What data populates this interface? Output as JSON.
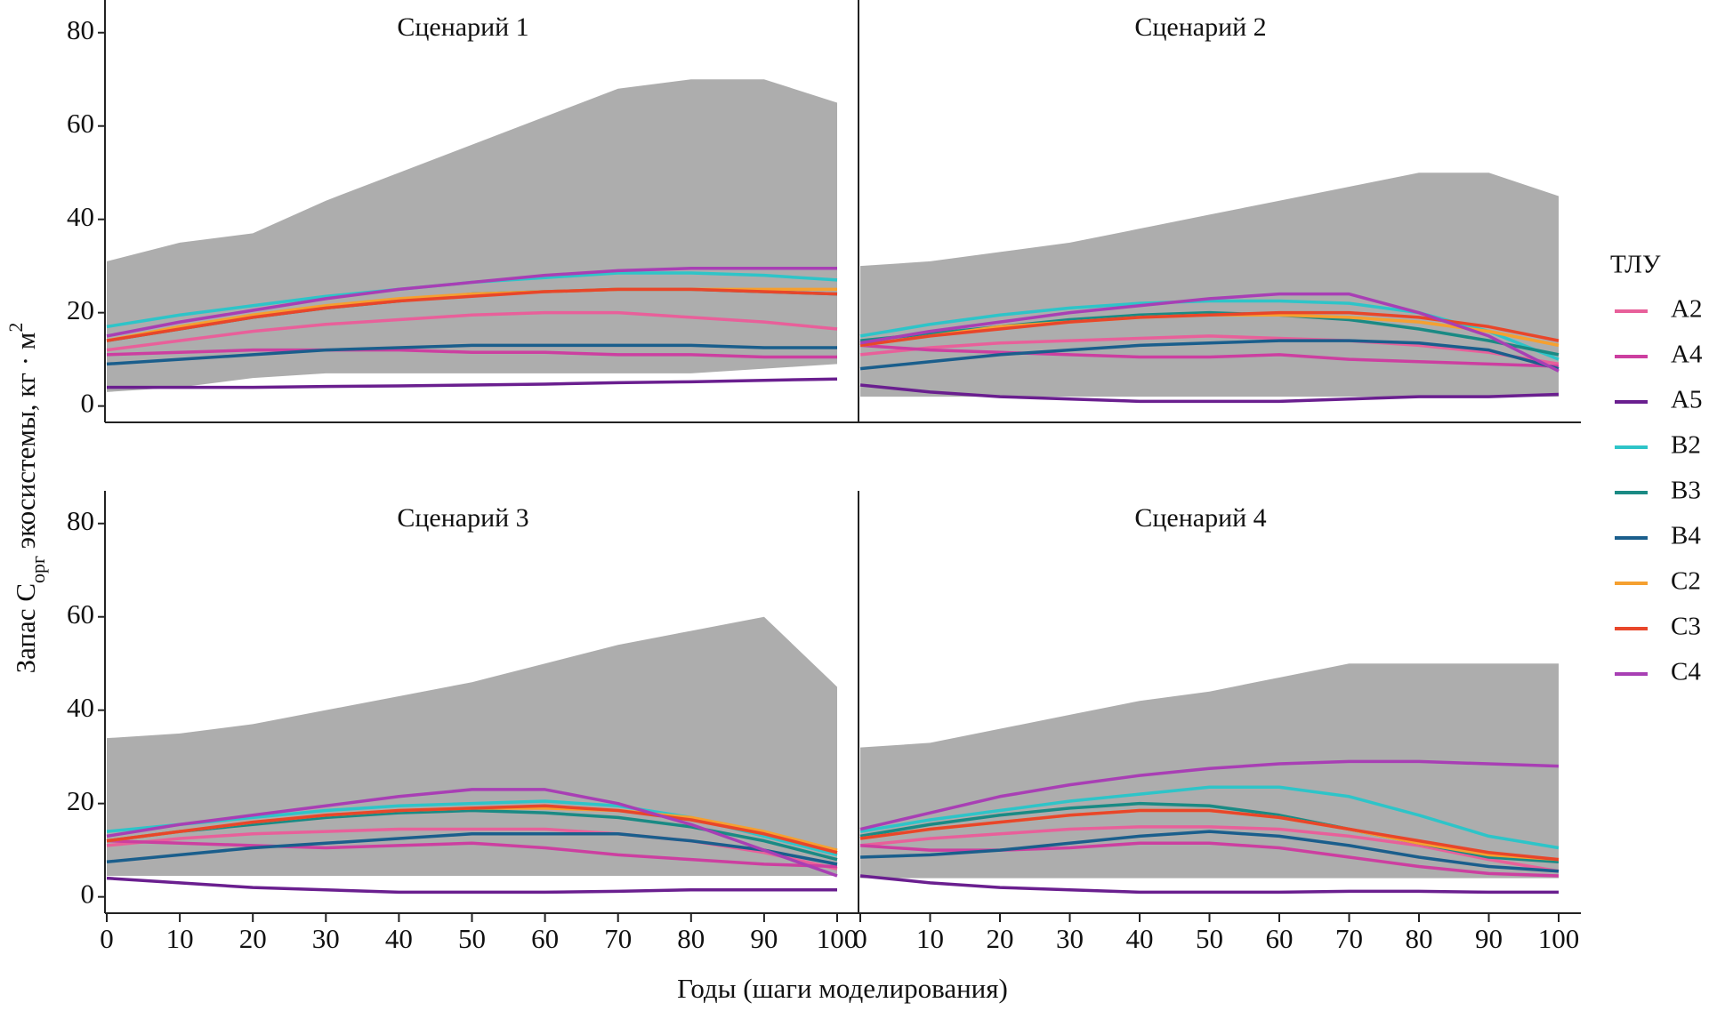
{
  "chart_data": [
    {
      "type": "line",
      "title": "Сценарий 1",
      "x": [
        0,
        10,
        20,
        30,
        40,
        50,
        60,
        70,
        80,
        90,
        100
      ],
      "xlim": [
        0,
        100
      ],
      "ylim": [
        -3.5,
        87
      ],
      "yticks": [
        0,
        20,
        40,
        60,
        80
      ],
      "envelope_color": "#a9a9a9",
      "envelope_upper": [
        31,
        35,
        37,
        44,
        50,
        56,
        62,
        68,
        70,
        70,
        65
      ],
      "envelope_lower": [
        3,
        4,
        6,
        7,
        7,
        7,
        7,
        7,
        7,
        8,
        9
      ],
      "series": [
        {
          "name": "A2",
          "color": "#e8609a",
          "values": [
            12,
            14,
            16,
            17.5,
            18.5,
            19.5,
            20,
            20,
            19,
            18,
            16.5
          ]
        },
        {
          "name": "A4",
          "color": "#cc3fa0",
          "values": [
            11,
            11.5,
            12,
            12,
            12,
            11.5,
            11.5,
            11,
            11,
            10.5,
            10.5
          ]
        },
        {
          "name": "A5",
          "color": "#6a1f8f",
          "values": [
            4,
            4,
            4,
            4.2,
            4.3,
            4.5,
            4.7,
            5,
            5.2,
            5.5,
            5.8
          ]
        },
        {
          "name": "B2",
          "color": "#2ec4c8",
          "values": [
            17,
            19.5,
            21.5,
            23.5,
            25,
            26.5,
            27.5,
            28.5,
            28.5,
            28,
            27
          ]
        },
        {
          "name": "B3",
          "color": "#1a8a84",
          "values": [
            14,
            16.5,
            19,
            21,
            22.5,
            24,
            24.5,
            25,
            25,
            24.5,
            24
          ]
        },
        {
          "name": "B4",
          "color": "#1a5e8c",
          "values": [
            9,
            10,
            11,
            12,
            12.5,
            13,
            13,
            13,
            13,
            12.5,
            12.5
          ]
        },
        {
          "name": "C2",
          "color": "#f5a030",
          "values": [
            14,
            17,
            19.5,
            21.5,
            23,
            24,
            24.5,
            25,
            25,
            25,
            25
          ]
        },
        {
          "name": "C3",
          "color": "#e8462a",
          "values": [
            14,
            16.5,
            19,
            21,
            22.5,
            23.5,
            24.5,
            25,
            25,
            24.5,
            24
          ]
        },
        {
          "name": "C4",
          "color": "#a83fb4",
          "values": [
            15,
            18,
            20.5,
            23,
            25,
            26.5,
            28,
            29,
            29.5,
            29.5,
            29.5
          ]
        }
      ]
    },
    {
      "type": "line",
      "title": "Сценарий 2",
      "x": [
        0,
        10,
        20,
        30,
        40,
        50,
        60,
        70,
        80,
        90,
        100
      ],
      "xlim": [
        0,
        100
      ],
      "ylim": [
        -3.5,
        87
      ],
      "envelope_color": "#a9a9a9",
      "envelope_upper": [
        30,
        31,
        33,
        35,
        38,
        41,
        44,
        47,
        50,
        50,
        45
      ],
      "envelope_lower": [
        2,
        2,
        2,
        2,
        2,
        2,
        2,
        2,
        2,
        2,
        2
      ],
      "series": [
        {
          "name": "A2",
          "color": "#e8609a",
          "values": [
            11,
            12.5,
            13.5,
            14,
            14.5,
            15,
            14.5,
            14,
            13,
            11.5,
            9
          ]
        },
        {
          "name": "A4",
          "color": "#cc3fa0",
          "values": [
            13,
            12,
            11.5,
            11,
            10.5,
            10.5,
            11,
            10,
            9.5,
            9,
            8.5
          ]
        },
        {
          "name": "A5",
          "color": "#6a1f8f",
          "values": [
            4.5,
            3,
            2,
            1.5,
            1,
            1,
            1,
            1.5,
            2,
            2,
            2.5
          ]
        },
        {
          "name": "B2",
          "color": "#2ec4c8",
          "values": [
            15,
            17.5,
            19.5,
            21,
            22,
            22.5,
            22.5,
            22,
            20,
            16,
            10
          ]
        },
        {
          "name": "B3",
          "color": "#1a8a84",
          "values": [
            14,
            15.5,
            17,
            18.5,
            19.5,
            20,
            19.5,
            18.5,
            16.5,
            14,
            11
          ]
        },
        {
          "name": "B4",
          "color": "#1a5e8c",
          "values": [
            8,
            9.5,
            11,
            12,
            13,
            13.5,
            14,
            14,
            13.5,
            12,
            8
          ]
        },
        {
          "name": "C2",
          "color": "#f5a030",
          "values": [
            13,
            15,
            17,
            18,
            19,
            19.5,
            19.5,
            19,
            18,
            16,
            13
          ]
        },
        {
          "name": "C3",
          "color": "#e8462a",
          "values": [
            13,
            15,
            16.5,
            18,
            19,
            19.5,
            20,
            20,
            19,
            17,
            14
          ]
        },
        {
          "name": "C4",
          "color": "#a83fb4",
          "values": [
            13.5,
            16,
            18,
            20,
            21.5,
            23,
            24,
            24,
            20,
            15,
            7.5
          ]
        }
      ]
    },
    {
      "type": "line",
      "title": "Сценарий 3",
      "x": [
        0,
        10,
        20,
        30,
        40,
        50,
        60,
        70,
        80,
        90,
        100
      ],
      "xlim": [
        0,
        100
      ],
      "ylim": [
        -3.5,
        87
      ],
      "xticks": [
        0,
        10,
        20,
        30,
        40,
        50,
        60,
        70,
        80,
        90,
        100
      ],
      "yticks": [
        0,
        20,
        40,
        60,
        80
      ],
      "envelope_color": "#a9a9a9",
      "envelope_upper": [
        34,
        35,
        37,
        40,
        43,
        46,
        50,
        54,
        57,
        60,
        45
      ],
      "envelope_lower": [
        4.5,
        4.5,
        4.5,
        4.5,
        4.5,
        4.5,
        4.5,
        4.5,
        4.5,
        4.5,
        4.5
      ],
      "series": [
        {
          "name": "A2",
          "color": "#e8609a",
          "values": [
            11,
            12.5,
            13.5,
            14,
            14.5,
            14.5,
            14.5,
            13.5,
            12,
            9.5,
            6
          ]
        },
        {
          "name": "A4",
          "color": "#cc3fa0",
          "values": [
            12,
            11.5,
            11,
            10.5,
            11,
            11.5,
            10.5,
            9,
            8,
            7,
            6.5
          ]
        },
        {
          "name": "A5",
          "color": "#6a1f8f",
          "values": [
            4,
            3,
            2,
            1.5,
            1,
            1,
            1,
            1.2,
            1.5,
            1.5,
            1.5
          ]
        },
        {
          "name": "B2",
          "color": "#2ec4c8",
          "values": [
            14,
            15.5,
            17,
            18.5,
            19.5,
            20,
            20.5,
            19.5,
            17,
            13,
            9
          ]
        },
        {
          "name": "B3",
          "color": "#1a8a84",
          "values": [
            12,
            14,
            15.5,
            17,
            18,
            18.5,
            18,
            17,
            15,
            12,
            8
          ]
        },
        {
          "name": "B4",
          "color": "#1a5e8c",
          "values": [
            7.5,
            9,
            10.5,
            11.5,
            12.5,
            13.5,
            13.5,
            13.5,
            12,
            10,
            7
          ]
        },
        {
          "name": "C2",
          "color": "#f5a030",
          "values": [
            12,
            14,
            16,
            17.5,
            18.5,
            19,
            19,
            18.5,
            17,
            14,
            10
          ]
        },
        {
          "name": "C3",
          "color": "#e8462a",
          "values": [
            12,
            14,
            16,
            17.5,
            18.5,
            19,
            19.5,
            18.5,
            16.5,
            13.5,
            9.5
          ]
        },
        {
          "name": "C4",
          "color": "#a83fb4",
          "values": [
            13,
            15.5,
            17.5,
            19.5,
            21.5,
            23,
            23,
            20,
            15.5,
            10,
            4.5
          ]
        }
      ]
    },
    {
      "type": "line",
      "title": "Сценарий 4",
      "x": [
        0,
        10,
        20,
        30,
        40,
        50,
        60,
        70,
        80,
        90,
        100
      ],
      "xlim": [
        0,
        100
      ],
      "ylim": [
        -3.5,
        87
      ],
      "xticks": [
        0,
        10,
        20,
        30,
        40,
        50,
        60,
        70,
        80,
        90,
        100
      ],
      "envelope_color": "#a9a9a9",
      "envelope_upper": [
        32,
        33,
        36,
        39,
        42,
        44,
        47,
        50,
        50,
        50,
        50
      ],
      "envelope_lower": [
        4,
        4,
        4,
        4,
        4,
        4,
        4,
        4,
        4,
        4,
        4
      ],
      "series": [
        {
          "name": "A2",
          "color": "#e8609a",
          "values": [
            11,
            12.5,
            13.5,
            14.5,
            15,
            15,
            14.5,
            13,
            11,
            8,
            5.5
          ]
        },
        {
          "name": "A4",
          "color": "#cc3fa0",
          "values": [
            11,
            10,
            10,
            10.5,
            11.5,
            11.5,
            10.5,
            8.5,
            6.5,
            5,
            4.5
          ]
        },
        {
          "name": "A5",
          "color": "#6a1f8f",
          "values": [
            4.5,
            3,
            2,
            1.5,
            1,
            1,
            1,
            1.2,
            1.2,
            1,
            1
          ]
        },
        {
          "name": "B2",
          "color": "#2ec4c8",
          "values": [
            14,
            16.5,
            18.5,
            20.5,
            22,
            23.5,
            23.5,
            21.5,
            17.5,
            13,
            10.5
          ]
        },
        {
          "name": "B3",
          "color": "#1a8a84",
          "values": [
            13,
            15.5,
            17.5,
            19,
            20,
            19.5,
            17.5,
            14.5,
            11.5,
            8.5,
            7.5
          ]
        },
        {
          "name": "B4",
          "color": "#1a5e8c",
          "values": [
            8.5,
            9,
            10,
            11.5,
            13,
            14,
            13,
            11,
            8.5,
            6.5,
            5.5
          ]
        },
        {
          "name": "C2",
          "color": "#f5a030",
          "values": [
            12.5,
            14.5,
            16,
            17.5,
            18.5,
            18.5,
            17,
            14.5,
            11.5,
            9,
            8
          ]
        },
        {
          "name": "C3",
          "color": "#e8462a",
          "values": [
            12.5,
            14.5,
            16,
            17.5,
            18.5,
            18.5,
            17,
            14.5,
            12,
            9.5,
            8
          ]
        },
        {
          "name": "C4",
          "color": "#a83fb4",
          "values": [
            14.5,
            18,
            21.5,
            24,
            26,
            27.5,
            28.5,
            29,
            29,
            28.5,
            28
          ]
        }
      ]
    }
  ],
  "x_label": "Годы (шаги моделирования)",
  "y_label": [
    "Запас C",
    "орг",
    " экосистемы, кг · м",
    "2"
  ],
  "legend_title": "ТЛУ"
}
